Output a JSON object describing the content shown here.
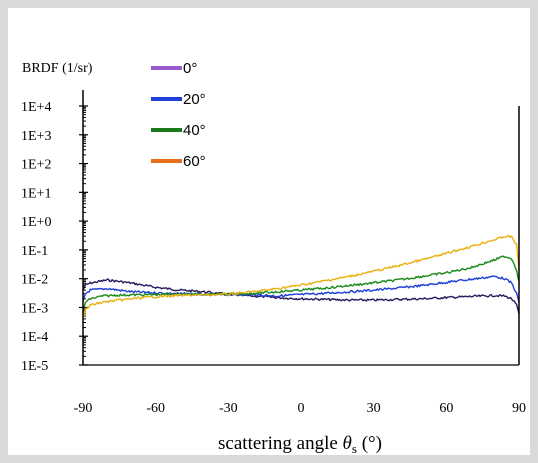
{
  "chart_data": {
    "type": "line",
    "ylabel": "BRDF  (1/sr)",
    "xlabel_main": "scattering angle ",
    "xlabel_symbol": "θ",
    "xlabel_sub": "s",
    "xlabel_unit": " (°)",
    "xlim": [
      -90,
      90
    ],
    "ylim": [
      1e-05,
      10000.0
    ],
    "yscale": "log",
    "x_ticks": [
      -90,
      -60,
      -30,
      0,
      30,
      60,
      90
    ],
    "x_tick_labels": [
      "-90",
      "-60",
      "-30",
      "0",
      "30",
      "60",
      "90"
    ],
    "y_ticks": [
      10000.0,
      1000.0,
      100.0,
      10.0,
      1,
      0.1,
      0.01,
      0.001,
      0.0001,
      1e-05
    ],
    "y_tick_labels": [
      "1E+4",
      "1E+3",
      "1E+2",
      "1E+1",
      "1E+0",
      "1E-1",
      "1E-2",
      "1E-3",
      "1E-4",
      "1E-5"
    ],
    "legend_position": "top-left",
    "series": [
      {
        "name": "0°",
        "color": "#2a1a5e",
        "legend_color": "#9b59d0",
        "x": [
          -90,
          -89,
          -87,
          -80,
          -75,
          -70,
          -60,
          -50,
          -40,
          -30,
          -20,
          -10,
          0,
          10,
          20,
          30,
          40,
          50,
          60,
          70,
          80,
          84,
          87,
          89,
          90
        ],
        "y": [
          0.004,
          0.006,
          0.007,
          0.009,
          0.008,
          0.007,
          0.005,
          0.004,
          0.0035,
          0.0028,
          0.0025,
          0.0022,
          0.002,
          0.0019,
          0.0018,
          0.0018,
          0.0019,
          0.002,
          0.0022,
          0.0024,
          0.0026,
          0.0025,
          0.002,
          0.0012,
          0.0006
        ]
      },
      {
        "name": "20°",
        "color": "#1f3fd6",
        "legend_color": "#1f3fd6",
        "x": [
          -90,
          -89,
          -87,
          -80,
          -70,
          -60,
          -50,
          -40,
          -30,
          -20,
          -10,
          0,
          10,
          20,
          30,
          40,
          50,
          60,
          70,
          80,
          84,
          87,
          89,
          90
        ],
        "y": [
          0.0015,
          0.003,
          0.004,
          0.0045,
          0.0035,
          0.0032,
          0.003,
          0.0028,
          0.0028,
          0.0028,
          0.0025,
          0.0028,
          0.0031,
          0.0035,
          0.004,
          0.0047,
          0.0058,
          0.0075,
          0.0095,
          0.012,
          0.01,
          0.007,
          0.003,
          0.0015
        ]
      },
      {
        "name": "40°",
        "color": "#1a8a1a",
        "legend_color": "#1a7a1a",
        "x": [
          -90,
          -89,
          -87,
          -82,
          -75,
          -60,
          -50,
          -40,
          -30,
          -20,
          -10,
          0,
          10,
          20,
          30,
          40,
          50,
          60,
          70,
          80,
          84,
          87,
          89,
          90
        ],
        "y": [
          0.0008,
          0.0015,
          0.002,
          0.0025,
          0.0027,
          0.0028,
          0.0029,
          0.0029,
          0.0029,
          0.0031,
          0.0035,
          0.004,
          0.0047,
          0.0058,
          0.0072,
          0.009,
          0.012,
          0.016,
          0.024,
          0.045,
          0.06,
          0.05,
          0.02,
          0.008
        ]
      },
      {
        "name": "60°",
        "color": "#e8b010",
        "legend_color": "#e8701a",
        "x": [
          -90,
          -89,
          -87,
          -82,
          -75,
          -65,
          -55,
          -45,
          -35,
          -30,
          -20,
          -10,
          0,
          10,
          20,
          30,
          40,
          50,
          60,
          70,
          80,
          85,
          87,
          89,
          90
        ],
        "y": [
          0.0004,
          0.0008,
          0.0012,
          0.0015,
          0.0018,
          0.0022,
          0.0025,
          0.0027,
          0.0028,
          0.0029,
          0.0035,
          0.0045,
          0.006,
          0.0085,
          0.012,
          0.018,
          0.028,
          0.045,
          0.075,
          0.13,
          0.23,
          0.3,
          0.28,
          0.15,
          0.02
        ]
      }
    ]
  }
}
